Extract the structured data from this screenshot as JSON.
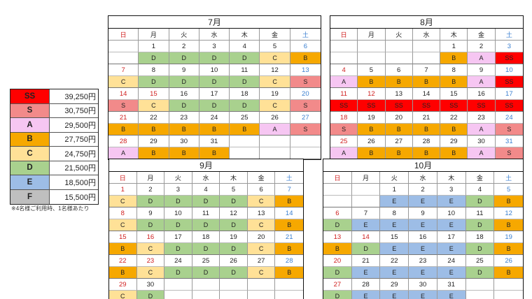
{
  "weekdays": [
    "日",
    "月",
    "火",
    "水",
    "木",
    "金",
    "土"
  ],
  "colors": {
    "SS": "#ff0000",
    "S": "#f28a8a",
    "A": "#f6c6f2",
    "B": "#f6a800",
    "C": "#ffe197",
    "D": "#a9d18e",
    "E": "#9dbde6",
    "F": "#bfbfbf"
  },
  "legend": {
    "items": [
      {
        "code": "SS",
        "price": "39,250円"
      },
      {
        "code": "S",
        "price": "30,750円"
      },
      {
        "code": "A",
        "price": "29,500円"
      },
      {
        "code": "B",
        "price": "27,750円"
      },
      {
        "code": "C",
        "price": "24,750円"
      },
      {
        "code": "D",
        "price": "21,500円"
      },
      {
        "code": "E",
        "price": "18,500円"
      },
      {
        "code": "F",
        "price": "15,500円"
      }
    ],
    "note": "※4名様ご利用時、1名様あたり"
  },
  "calendars": [
    {
      "id": "july",
      "title": "7月",
      "weeks": [
        {
          "days": [
            "",
            "1",
            "2",
            "3",
            "4",
            "5",
            "6"
          ],
          "rates": [
            "",
            "D",
            "D",
            "D",
            "D",
            "C",
            "B"
          ]
        },
        {
          "days": [
            "7",
            "8",
            "9",
            "10",
            "11",
            "12",
            "13"
          ],
          "rates": [
            "C",
            "D",
            "D",
            "D",
            "D",
            "C",
            "S"
          ]
        },
        {
          "days": [
            "14",
            "15",
            "16",
            "17",
            "18",
            "19",
            "20"
          ],
          "rates": [
            "S",
            "C",
            "D",
            "D",
            "D",
            "C",
            "S"
          ]
        },
        {
          "days": [
            "21",
            "22",
            "23",
            "24",
            "25",
            "26",
            "27"
          ],
          "rates": [
            "B",
            "B",
            "B",
            "B",
            "B",
            "A",
            "S"
          ]
        },
        {
          "days": [
            "28",
            "29",
            "30",
            "31",
            "",
            "",
            ""
          ],
          "rates": [
            "A",
            "B",
            "B",
            "B",
            "",
            "",
            ""
          ]
        }
      ],
      "holidays": [
        "15"
      ]
    },
    {
      "id": "august",
      "title": "8月",
      "weeks": [
        {
          "days": [
            "",
            "",
            "",
            "",
            "1",
            "2",
            "3"
          ],
          "rates": [
            "",
            "",
            "",
            "",
            "B",
            "A",
            "SS"
          ]
        },
        {
          "days": [
            "4",
            "5",
            "6",
            "7",
            "8",
            "9",
            "10"
          ],
          "rates": [
            "A",
            "B",
            "B",
            "B",
            "B",
            "A",
            "SS"
          ]
        },
        {
          "days": [
            "11",
            "12",
            "13",
            "14",
            "15",
            "16",
            "17"
          ],
          "rates": [
            "SS",
            "SS",
            "SS",
            "SS",
            "SS",
            "SS",
            "SS"
          ]
        },
        {
          "days": [
            "18",
            "19",
            "20",
            "21",
            "22",
            "23",
            "24"
          ],
          "rates": [
            "S",
            "B",
            "B",
            "B",
            "B",
            "A",
            "S"
          ]
        },
        {
          "days": [
            "25",
            "26",
            "27",
            "28",
            "29",
            "30",
            "31"
          ],
          "rates": [
            "A",
            "B",
            "B",
            "B",
            "B",
            "A",
            "S"
          ]
        }
      ],
      "holidays": [
        "12"
      ]
    },
    {
      "id": "september",
      "title": "9月",
      "weeks": [
        {
          "days": [
            "1",
            "2",
            "3",
            "4",
            "5",
            "6",
            "7"
          ],
          "rates": [
            "C",
            "D",
            "D",
            "D",
            "D",
            "C",
            "B"
          ]
        },
        {
          "days": [
            "8",
            "9",
            "10",
            "11",
            "12",
            "13",
            "14"
          ],
          "rates": [
            "C",
            "D",
            "D",
            "D",
            "D",
            "C",
            "B"
          ]
        },
        {
          "days": [
            "15",
            "16",
            "17",
            "18",
            "19",
            "20",
            "21"
          ],
          "rates": [
            "B",
            "C",
            "D",
            "D",
            "D",
            "C",
            "B"
          ]
        },
        {
          "days": [
            "22",
            "23",
            "24",
            "25",
            "26",
            "27",
            "28"
          ],
          "rates": [
            "B",
            "C",
            "D",
            "D",
            "D",
            "C",
            "B"
          ]
        },
        {
          "days": [
            "29",
            "30",
            "",
            "",
            "",
            "",
            ""
          ],
          "rates": [
            "C",
            "D",
            "",
            "",
            "",
            "",
            ""
          ]
        }
      ],
      "holidays": [
        "16",
        "23"
      ]
    },
    {
      "id": "october",
      "title": "10月",
      "weeks": [
        {
          "days": [
            "",
            "",
            "1",
            "2",
            "3",
            "4",
            "5"
          ],
          "rates": [
            "",
            "",
            "E",
            "E",
            "E",
            "D",
            "B"
          ]
        },
        {
          "days": [
            "6",
            "7",
            "8",
            "9",
            "10",
            "11",
            "12"
          ],
          "rates": [
            "D",
            "E",
            "E",
            "E",
            "E",
            "D",
            "B"
          ]
        },
        {
          "days": [
            "13",
            "14",
            "15",
            "16",
            "17",
            "18",
            "19"
          ],
          "rates": [
            "B",
            "D",
            "E",
            "E",
            "E",
            "D",
            "B"
          ]
        },
        {
          "days": [
            "20",
            "21",
            "22",
            "23",
            "24",
            "25",
            "26"
          ],
          "rates": [
            "D",
            "E",
            "E",
            "E",
            "E",
            "D",
            "B"
          ]
        },
        {
          "days": [
            "27",
            "28",
            "29",
            "30",
            "31",
            "",
            ""
          ],
          "rates": [
            "D",
            "E",
            "E",
            "E",
            "E",
            "",
            ""
          ]
        }
      ],
      "holidays": [
        "14"
      ]
    }
  ]
}
